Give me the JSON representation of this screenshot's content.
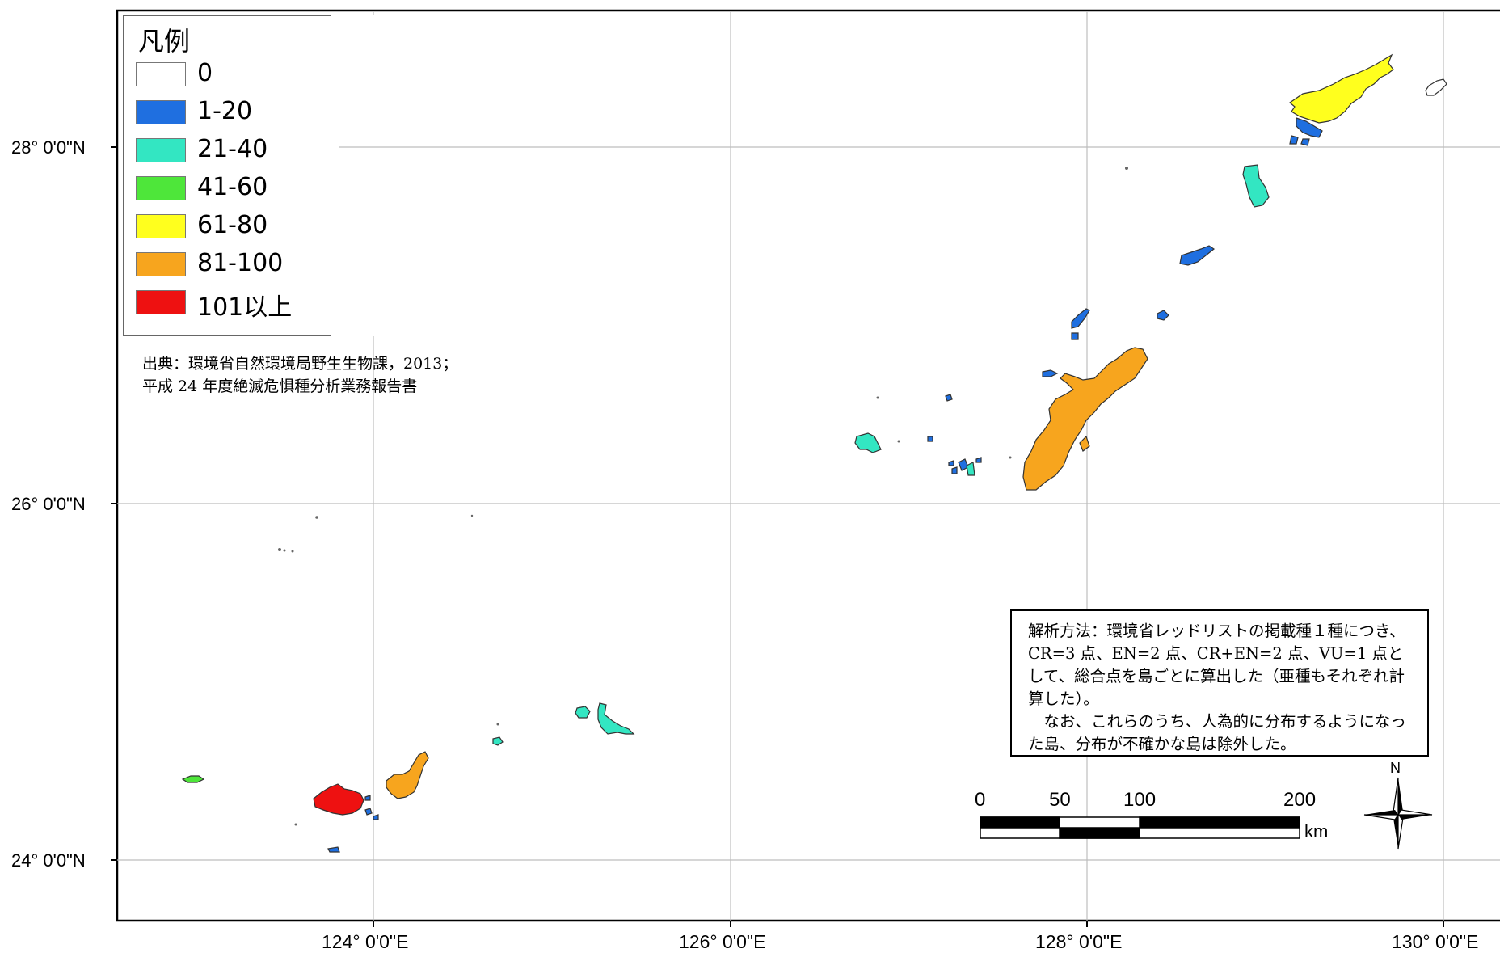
{
  "map": {
    "lat_labels": [
      "28° 0'0\"N",
      "26° 0'0\"N",
      "24° 0'0\"N"
    ],
    "lon_labels": [
      "124° 0'0\"E",
      "126° 0'0\"E",
      "128° 0'0\"E",
      "130° 0'0\"E"
    ],
    "class_colors": {
      "0": "#ffffff",
      "1-20": "#1f6fe0",
      "21-40": "#33e6c2",
      "41-60": "#4ee63a",
      "61-80": "#ffff1e",
      "81-100": "#f7a51e",
      "101以上": "#ee1111"
    }
  },
  "legend": {
    "title": "凡例",
    "items": [
      {
        "label": "0",
        "color": "#ffffff"
      },
      {
        "label": "1-20",
        "color": "#1f6fe0"
      },
      {
        "label": "21-40",
        "color": "#33e6c2"
      },
      {
        "label": "41-60",
        "color": "#4ee63a"
      },
      {
        "label": "61-80",
        "color": "#ffff1e"
      },
      {
        "label": "81-100",
        "color": "#f7a51e"
      },
      {
        "label": "101以上",
        "color": "#ee1111"
      }
    ]
  },
  "source": {
    "line1": "出典：環境省自然環境局野生生物課，2013；",
    "line2": "平成 24 年度絶滅危惧種分析業務報告書"
  },
  "method": {
    "para1": "解析方法：環境省レッドリストの掲載種１種につき、CR=3 点、EN=2 点、CR+EN=2 点、VU=1 点として、総合点を島ごとに算出した（亜種もそれぞれ計算した）。",
    "para2": "　なお、これらのうち、人為的に分布するようになった島、分布が不確かな島は除外した。"
  },
  "scalebar": {
    "ticks": [
      "0",
      "50",
      "100",
      "200"
    ],
    "unit": "km"
  },
  "north_arrow": {
    "label": "N",
    "icon": "compass-rose-icon"
  }
}
